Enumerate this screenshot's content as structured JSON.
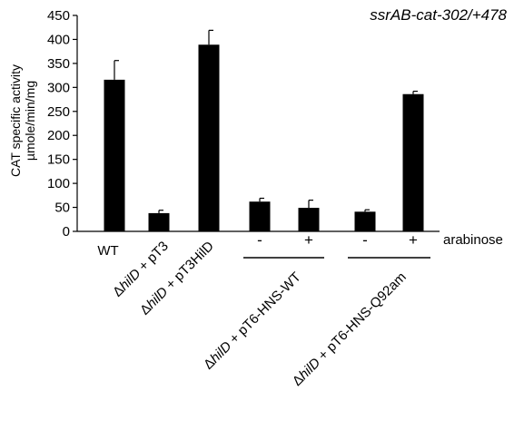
{
  "chart_data": {
    "type": "bar",
    "title": "ssrAB-cat-302/+478",
    "ylabel_line1": "CAT specific activity",
    "ylabel_line2": "µmole/min/mg",
    "ylim": [
      0,
      450
    ],
    "yticks": [
      0,
      50,
      100,
      150,
      200,
      250,
      300,
      350,
      400,
      450
    ],
    "grid": false,
    "color": "#000000",
    "categories": [
      "WT",
      "ΔhilD + pT3",
      "ΔhilD + pT3HilD",
      "-",
      "+",
      "-",
      "+"
    ],
    "values": [
      316,
      38,
      389,
      62,
      49,
      41,
      286
    ],
    "errors": [
      40,
      6,
      30,
      7,
      16,
      4,
      6
    ],
    "group_labels": [
      {
        "prefix": "Δ",
        "gene": "hilD",
        "rest": " + pT6-HNS-WT"
      },
      {
        "prefix": "Δ",
        "gene": "hilD",
        "rest": " + pT6-HNS-Q92am"
      }
    ],
    "single_labels": [
      {
        "text": "WT"
      },
      {
        "prefix": "Δ",
        "gene": "hilD",
        "rest": " + pT3"
      },
      {
        "prefix": "Δ",
        "gene": "hilD",
        "rest": " + pT3HilD"
      }
    ],
    "signs": [
      "-",
      "+",
      "-",
      "+"
    ],
    "arabinose_label": "arabinose"
  }
}
